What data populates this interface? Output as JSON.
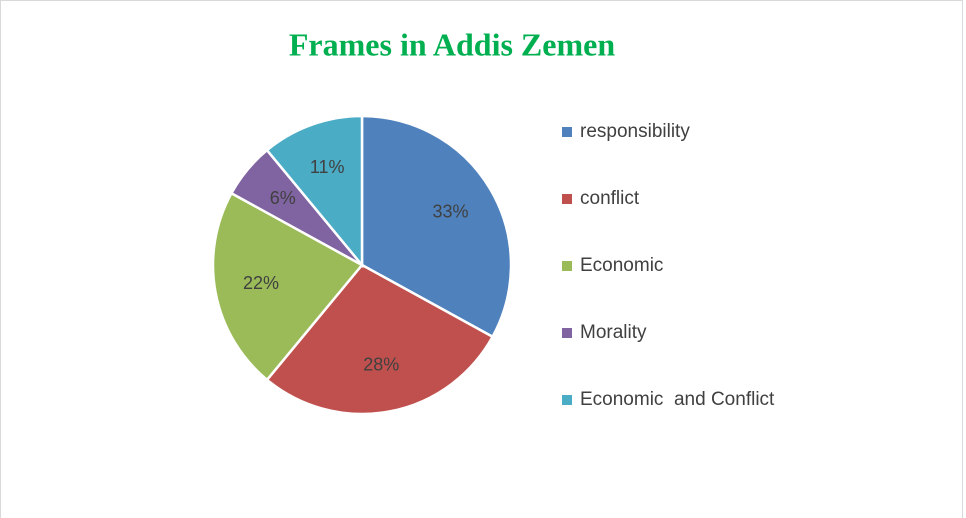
{
  "chart_data": {
    "type": "pie",
    "title": "Frames in Addis Zemen",
    "categories": [
      "responsibility",
      "conflict",
      "Economic",
      "Morality",
      "Economic  and Conflict"
    ],
    "values": [
      33,
      28,
      22,
      6,
      11
    ],
    "value_labels": [
      "33%",
      "28%",
      "22%",
      "6%",
      "11%"
    ],
    "colors": [
      "#4f81bd",
      "#c0504d",
      "#9bbb59",
      "#8064a2",
      "#4bacc6"
    ],
    "legend": "right"
  }
}
